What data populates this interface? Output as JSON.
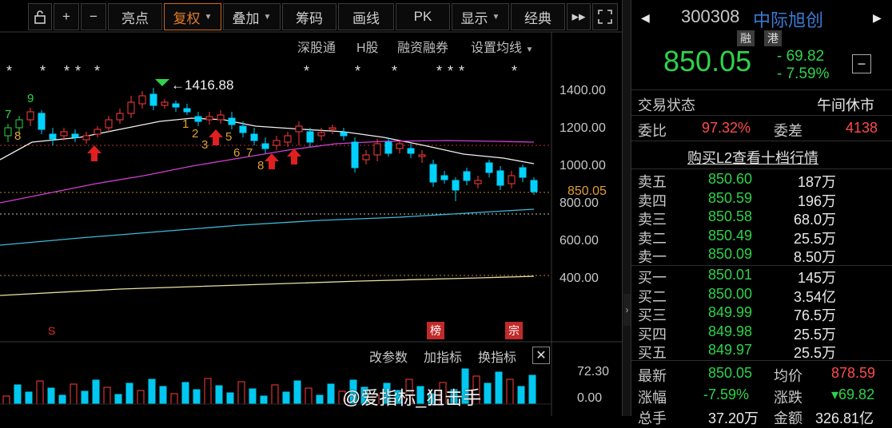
{
  "toolbar": {
    "items": [
      {
        "label": "亮点",
        "caret": false
      },
      {
        "label": "复权",
        "caret": true,
        "active": true
      },
      {
        "label": "叠加",
        "caret": true
      },
      {
        "label": "筹码",
        "caret": false
      },
      {
        "label": "画线",
        "caret": false
      },
      {
        "label": "PK",
        "caret": false
      },
      {
        "label": "显示",
        "caret": true
      },
      {
        "label": "经典",
        "caret": false
      }
    ]
  },
  "subbar": {
    "items": [
      "深股通",
      "H股",
      "融资融券",
      "设置均线"
    ]
  },
  "chart_data": {
    "type": "candlestick",
    "y_ticks": [
      "1400.00",
      "1200.00",
      "1000.00",
      "800.00",
      "600.00",
      "400.00"
    ],
    "high_label": "1416.88",
    "current_price_label": "850.05",
    "current_price": 850.05,
    "day_count_labels": [
      "7",
      "9",
      "8",
      "1",
      "2",
      "3",
      "5",
      "6",
      "7",
      "8"
    ],
    "volume_ticks": [
      "72.30",
      "0.00"
    ],
    "badges": [
      "榜",
      "宗"
    ],
    "s_mark": "S"
  },
  "indicator_bar": {
    "items": [
      "改参数",
      "加指标",
      "换指标"
    ]
  },
  "watermark": "@爱指标_狙击手",
  "quote": {
    "code": "300308",
    "name": "中际旭创",
    "tags": [
      "融",
      "港"
    ],
    "last": "850.05",
    "change": "- 69.82",
    "change_pct": "- 7.59%",
    "status_label": "交易状态",
    "status_value": "午间休市",
    "weibi_label": "委比",
    "weibi_value": "97.32%",
    "weicha_label": "委差",
    "weicha_value": "4138",
    "l2_banner": "购买L2查看十档行情"
  },
  "order_book": {
    "asks": [
      {
        "name": "卖五",
        "price": "850.60",
        "volume": "187万"
      },
      {
        "name": "卖四",
        "price": "850.59",
        "volume": "196万"
      },
      {
        "name": "卖三",
        "price": "850.58",
        "volume": "68.0万"
      },
      {
        "name": "卖二",
        "price": "850.49",
        "volume": "25.5万"
      },
      {
        "name": "卖一",
        "price": "850.09",
        "volume": "8.50万"
      }
    ],
    "bids": [
      {
        "name": "买一",
        "price": "850.01",
        "volume": "145万"
      },
      {
        "name": "买二",
        "price": "850.00",
        "volume": "3.54亿"
      },
      {
        "name": "买三",
        "price": "849.99",
        "volume": "76.5万"
      },
      {
        "name": "买四",
        "price": "849.98",
        "volume": "25.5万"
      },
      {
        "name": "买五",
        "price": "849.97",
        "volume": "25.5万"
      }
    ]
  },
  "stats": {
    "latest_label": "最新",
    "latest_value": "850.05",
    "avg_label": "均价",
    "avg_value": "878.59",
    "pct_label": "涨幅",
    "pct_value": "-7.59%",
    "chg_label": "涨跌",
    "chg_value": "▾69.82",
    "total_label": "总手",
    "total_value": "37.20万",
    "amount_label": "金额",
    "amount_value": "326.81亿"
  },
  "colors": {
    "up": "#ff3c3c",
    "down": "#00d2ff",
    "green": "#2ed34a",
    "ma_white": "#f0f0f0",
    "ma_magenta": "#d040d0",
    "ma_cyan": "#3fb8d8",
    "ma_yellow": "#e8e0a0"
  }
}
